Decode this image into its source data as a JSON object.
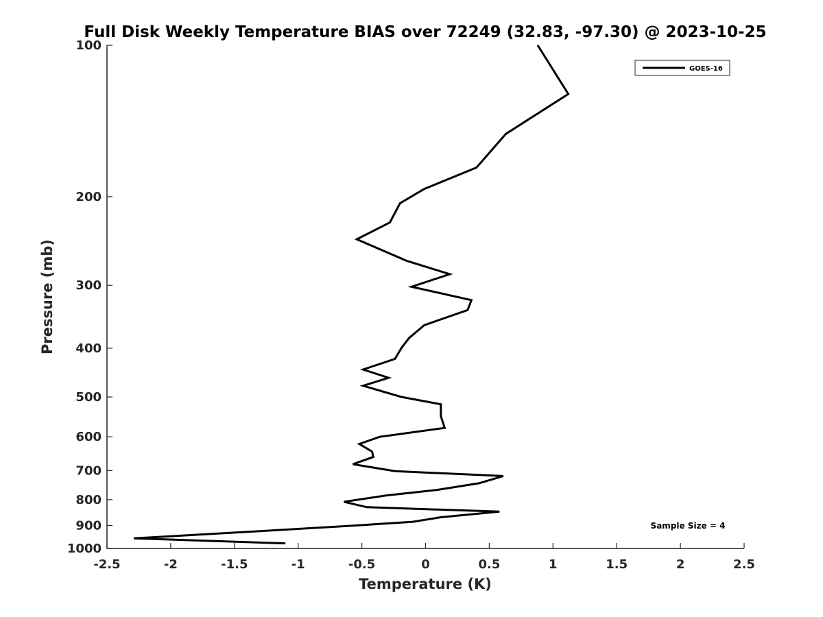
{
  "chart_data": {
    "type": "line",
    "title": "Full Disk Weekly Temperature BIAS over 72249 (32.83, -97.30) @ 2023-10-25",
    "xlabel": "Temperature (K)",
    "ylabel": "Pressure (mb)",
    "xlim": [
      -2.5,
      2.5
    ],
    "ylim": [
      100,
      1000
    ],
    "yscale": "log",
    "yreversed": true,
    "grid": false,
    "xticks": [
      -2.5,
      -2,
      -1.5,
      -1,
      -0.5,
      0,
      0.5,
      1,
      1.5,
      2,
      2.5
    ],
    "xtick_labels": [
      "-2.5",
      "-2",
      "-1.5",
      "-1",
      "-0.5",
      "0",
      "0.5",
      "1",
      "1.5",
      "2",
      "2.5"
    ],
    "yticks": [
      100,
      200,
      300,
      400,
      500,
      600,
      700,
      800,
      900,
      1000
    ],
    "ytick_labels": [
      "100",
      "200",
      "300",
      "400",
      "500",
      "600",
      "700",
      "800",
      "900",
      "1000"
    ],
    "legend_position": "top-right",
    "annotation": "Sample Size = 4",
    "color": "#000000",
    "series": [
      {
        "name": "GOES-16",
        "points": [
          {
            "x": 0.88,
            "y": 100
          },
          {
            "x": 1.12,
            "y": 125
          },
          {
            "x": 0.63,
            "y": 150
          },
          {
            "x": 0.4,
            "y": 175
          },
          {
            "x": -0.01,
            "y": 193
          },
          {
            "x": -0.2,
            "y": 206
          },
          {
            "x": -0.28,
            "y": 225
          },
          {
            "x": -0.54,
            "y": 243
          },
          {
            "x": -0.15,
            "y": 268
          },
          {
            "x": 0.19,
            "y": 285
          },
          {
            "x": -0.11,
            "y": 302
          },
          {
            "x": 0.36,
            "y": 321
          },
          {
            "x": 0.33,
            "y": 336
          },
          {
            "x": -0.01,
            "y": 360
          },
          {
            "x": -0.13,
            "y": 382
          },
          {
            "x": -0.19,
            "y": 400
          },
          {
            "x": -0.24,
            "y": 420
          },
          {
            "x": -0.49,
            "y": 441
          },
          {
            "x": -0.29,
            "y": 458
          },
          {
            "x": -0.49,
            "y": 475
          },
          {
            "x": -0.19,
            "y": 500
          },
          {
            "x": 0.12,
            "y": 517
          },
          {
            "x": 0.12,
            "y": 546
          },
          {
            "x": 0.15,
            "y": 576
          },
          {
            "x": -0.36,
            "y": 600
          },
          {
            "x": -0.52,
            "y": 620
          },
          {
            "x": -0.42,
            "y": 642
          },
          {
            "x": -0.41,
            "y": 658
          },
          {
            "x": -0.57,
            "y": 680
          },
          {
            "x": -0.24,
            "y": 702
          },
          {
            "x": 0.61,
            "y": 718
          },
          {
            "x": 0.42,
            "y": 742
          },
          {
            "x": 0.09,
            "y": 765
          },
          {
            "x": -0.31,
            "y": 785
          },
          {
            "x": -0.64,
            "y": 808
          },
          {
            "x": -0.46,
            "y": 828
          },
          {
            "x": 0.58,
            "y": 845
          },
          {
            "x": 0.12,
            "y": 867
          },
          {
            "x": -0.1,
            "y": 885
          },
          {
            "x": -0.6,
            "y": 902
          },
          {
            "x": -1.3,
            "y": 924
          },
          {
            "x": -2.29,
            "y": 955
          },
          {
            "x": -1.1,
            "y": 977
          }
        ]
      }
    ]
  }
}
